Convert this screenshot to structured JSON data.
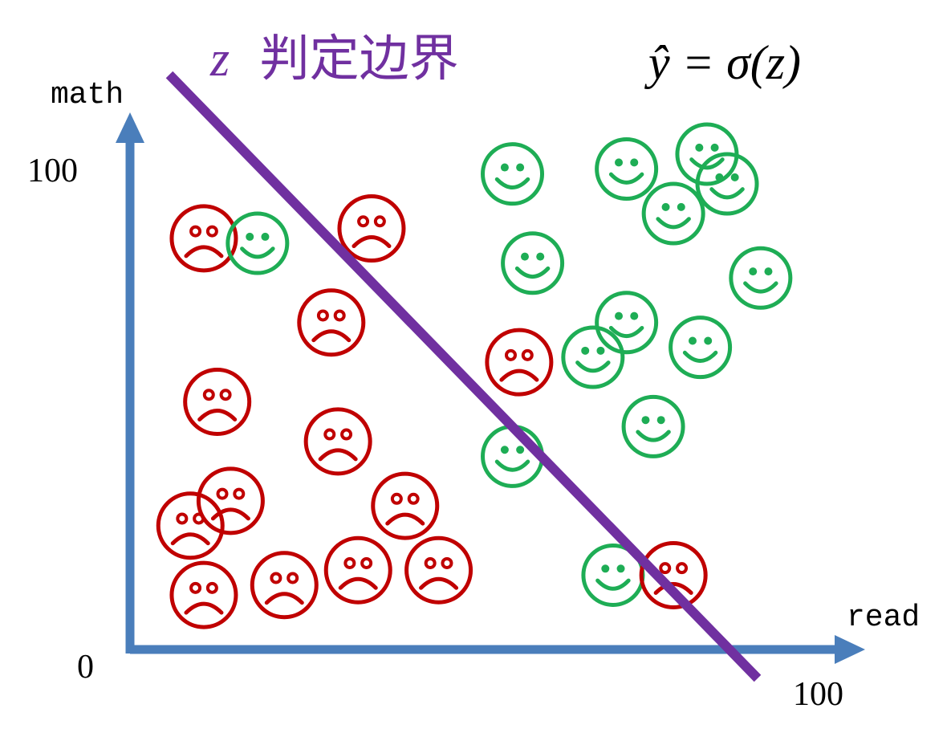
{
  "title": {
    "z_symbol": "z",
    "text": "判定边界",
    "color": "#7030a0"
  },
  "formula": {
    "text": "ŷ = σ(z)"
  },
  "axes": {
    "x_label": "read",
    "y_label": "math",
    "origin_label": "0",
    "x_max_label": "100",
    "y_max_label": "100",
    "color": "#4a7ebb"
  },
  "boundary": {
    "color": "#7030a0"
  },
  "colors": {
    "happy": "#1ead55",
    "sad": "#c00000"
  },
  "faces": [
    {
      "type": "sad",
      "read": 11,
      "math": 83
    },
    {
      "type": "happy",
      "read": 19,
      "math": 82
    },
    {
      "type": "sad",
      "read": 36,
      "math": 85
    },
    {
      "type": "sad",
      "read": 30,
      "math": 66
    },
    {
      "type": "sad",
      "read": 13,
      "math": 50
    },
    {
      "type": "sad",
      "read": 31,
      "math": 42
    },
    {
      "type": "sad",
      "read": 15,
      "math": 30
    },
    {
      "type": "sad",
      "read": 9,
      "math": 25
    },
    {
      "type": "sad",
      "read": 11,
      "math": 11
    },
    {
      "type": "sad",
      "read": 23,
      "math": 13
    },
    {
      "type": "sad",
      "read": 34,
      "math": 16
    },
    {
      "type": "sad",
      "read": 41,
      "math": 29
    },
    {
      "type": "sad",
      "read": 46,
      "math": 16
    },
    {
      "type": "sad",
      "read": 58,
      "math": 58
    },
    {
      "type": "happy",
      "read": 57,
      "math": 39
    },
    {
      "type": "happy",
      "read": 57,
      "math": 96
    },
    {
      "type": "happy",
      "read": 60,
      "math": 78
    },
    {
      "type": "happy",
      "read": 74,
      "math": 97
    },
    {
      "type": "happy",
      "read": 86,
      "math": 100
    },
    {
      "type": "happy",
      "read": 89,
      "math": 94
    },
    {
      "type": "happy",
      "read": 81,
      "math": 88
    },
    {
      "type": "happy",
      "read": 94,
      "math": 75
    },
    {
      "type": "happy",
      "read": 74,
      "math": 66
    },
    {
      "type": "happy",
      "read": 69,
      "math": 59
    },
    {
      "type": "happy",
      "read": 85,
      "math": 61
    },
    {
      "type": "happy",
      "read": 78,
      "math": 45
    },
    {
      "type": "happy",
      "read": 72,
      "math": 15
    },
    {
      "type": "sad",
      "read": 81,
      "math": 15
    }
  ]
}
